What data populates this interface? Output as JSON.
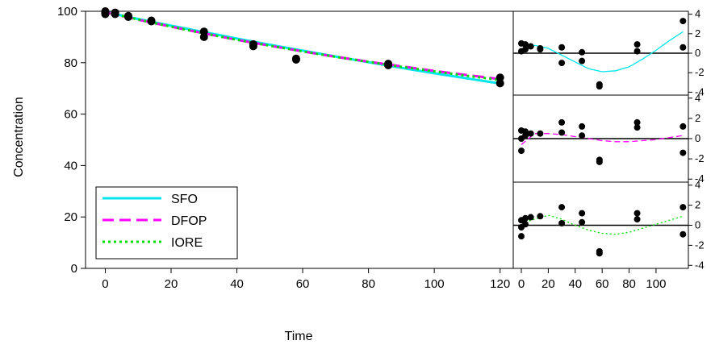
{
  "chart_data": [
    {
      "type": "scatter",
      "xlabel": "Time",
      "ylabel": "Concentration",
      "xlim": [
        -6,
        124
      ],
      "ylim": [
        0,
        100
      ],
      "x_ticks": [
        0,
        20,
        40,
        60,
        80,
        100,
        120
      ],
      "y_ticks": [
        0,
        20,
        40,
        60,
        80,
        100
      ],
      "observations": [
        {
          "x": 0,
          "y": 99.3
        },
        {
          "x": 0,
          "y": 100.0
        },
        {
          "x": 0,
          "y": 98.9
        },
        {
          "x": 0,
          "y": 99.6
        },
        {
          "x": 3,
          "y": 99.5
        },
        {
          "x": 3,
          "y": 98.9
        },
        {
          "x": 7,
          "y": 98.2
        },
        {
          "x": 7,
          "y": 97.8
        },
        {
          "x": 14,
          "y": 96.1
        },
        {
          "x": 14,
          "y": 96.4
        },
        {
          "x": 30,
          "y": 92.1
        },
        {
          "x": 30,
          "y": 90.0
        },
        {
          "x": 45,
          "y": 87.2
        },
        {
          "x": 45,
          "y": 86.4
        },
        {
          "x": 58,
          "y": 81.2
        },
        {
          "x": 58,
          "y": 81.6
        },
        {
          "x": 86,
          "y": 79.0
        },
        {
          "x": 86,
          "y": 79.6
        },
        {
          "x": 120,
          "y": 74.2
        },
        {
          "x": 120,
          "y": 72.0
        }
      ],
      "series": [
        {
          "name": "SFO",
          "color": "#00e5ee",
          "style": "solid",
          "x": [
            0,
            10,
            20,
            30,
            40,
            50,
            60,
            70,
            80,
            90,
            100,
            110,
            120
          ],
          "values": [
            99.7,
            97.0,
            94.4,
            91.9,
            89.4,
            87.0,
            84.7,
            82.4,
            80.2,
            78.0,
            75.9,
            73.9,
            71.9
          ]
        },
        {
          "name": "DFOP",
          "color": "#ff00ff",
          "style": "dashed",
          "x": [
            0,
            10,
            20,
            30,
            40,
            50,
            60,
            70,
            80,
            90,
            100,
            110,
            120
          ],
          "values": [
            99.6,
            96.7,
            94.0,
            91.4,
            88.9,
            86.6,
            84.4,
            82.3,
            80.4,
            78.6,
            76.8,
            75.2,
            73.6
          ]
        },
        {
          "name": "IORE",
          "color": "#00dd00",
          "style": "dotted",
          "x": [
            0,
            10,
            20,
            30,
            40,
            50,
            60,
            70,
            80,
            90,
            100,
            110,
            120
          ],
          "values": [
            99.7,
            96.8,
            94.0,
            91.4,
            88.9,
            86.6,
            84.4,
            82.3,
            80.3,
            78.4,
            76.6,
            74.9,
            73.3
          ]
        }
      ],
      "legend_position": "bottom-left",
      "grid": false
    },
    {
      "type": "scatter",
      "panel": "residuals",
      "xlim": [
        -6,
        124
      ],
      "x_ticks": [
        0,
        20,
        40,
        60,
        80,
        100
      ],
      "x_tick_labels": [
        "0",
        "20",
        "40",
        "60",
        "80",
        "100"
      ],
      "y_ticks": [
        -4,
        -2,
        0,
        2,
        4
      ],
      "panels": [
        {
          "name": "SFO",
          "color": "#00e5ee",
          "ylim": [
            -4.3,
            4.3
          ],
          "residuals": [
            {
              "x": 0,
              "y": 0.2
            },
            {
              "x": 0,
              "y": 1.0
            },
            {
              "x": 3,
              "y": 0.9
            },
            {
              "x": 3,
              "y": 0.4
            },
            {
              "x": 7,
              "y": 0.7
            },
            {
              "x": 14,
              "y": 0.5
            },
            {
              "x": 14,
              "y": 0.4
            },
            {
              "x": 30,
              "y": 0.6
            },
            {
              "x": 30,
              "y": -1.0
            },
            {
              "x": 45,
              "y": 0.1
            },
            {
              "x": 45,
              "y": -0.8
            },
            {
              "x": 58,
              "y": -3.2
            },
            {
              "x": 58,
              "y": -3.4
            },
            {
              "x": 86,
              "y": 0.9
            },
            {
              "x": 86,
              "y": 0.2
            },
            {
              "x": 120,
              "y": 3.3
            },
            {
              "x": 120,
              "y": 0.6
            }
          ],
          "fit_x": [
            0,
            10,
            20,
            30,
            40,
            50,
            60,
            70,
            80,
            90,
            100,
            110,
            120
          ],
          "fit_y": [
            0.1,
            0.8,
            0.5,
            -0.2,
            -0.9,
            -1.6,
            -1.9,
            -1.8,
            -1.4,
            -0.6,
            0.3,
            1.3,
            2.2
          ]
        },
        {
          "name": "DFOP",
          "color": "#ff00ff",
          "ylim": [
            -4.3,
            4.3
          ],
          "residuals": [
            {
              "x": 0,
              "y": -1.2
            },
            {
              "x": 0,
              "y": 0.0
            },
            {
              "x": 0,
              "y": 0.8
            },
            {
              "x": 3,
              "y": 0.7
            },
            {
              "x": 3,
              "y": 0.3
            },
            {
              "x": 7,
              "y": 0.5
            },
            {
              "x": 14,
              "y": 0.5
            },
            {
              "x": 30,
              "y": 1.6
            },
            {
              "x": 30,
              "y": 0.6
            },
            {
              "x": 45,
              "y": 1.2
            },
            {
              "x": 45,
              "y": 0.3
            },
            {
              "x": 58,
              "y": -2.1
            },
            {
              "x": 58,
              "y": -2.3
            },
            {
              "x": 86,
              "y": 1.6
            },
            {
              "x": 86,
              "y": 1.1
            },
            {
              "x": 120,
              "y": 1.2
            },
            {
              "x": 120,
              "y": -1.4
            }
          ],
          "fit_x": [
            0,
            10,
            20,
            30,
            40,
            50,
            60,
            70,
            80,
            90,
            100,
            110,
            120
          ],
          "fit_y": [
            -0.6,
            0.5,
            0.5,
            0.4,
            0.2,
            0.0,
            -0.2,
            -0.3,
            -0.3,
            -0.2,
            -0.1,
            0.1,
            0.3
          ]
        },
        {
          "name": "IORE",
          "color": "#00dd00",
          "ylim": [
            -4.3,
            4.3
          ],
          "residuals": [
            {
              "x": 0,
              "y": -1.1
            },
            {
              "x": 0,
              "y": -0.2
            },
            {
              "x": 0,
              "y": 0.5
            },
            {
              "x": 3,
              "y": 0.7
            },
            {
              "x": 3,
              "y": 0.1
            },
            {
              "x": 7,
              "y": 0.8
            },
            {
              "x": 14,
              "y": 0.9
            },
            {
              "x": 30,
              "y": 1.8
            },
            {
              "x": 30,
              "y": 0.2
            },
            {
              "x": 45,
              "y": 1.2
            },
            {
              "x": 45,
              "y": 0.3
            },
            {
              "x": 58,
              "y": -2.6
            },
            {
              "x": 58,
              "y": -2.8
            },
            {
              "x": 86,
              "y": 1.2
            },
            {
              "x": 86,
              "y": 0.6
            },
            {
              "x": 120,
              "y": 1.8
            },
            {
              "x": 120,
              "y": -0.9
            }
          ],
          "fit_x": [
            0,
            10,
            20,
            30,
            40,
            50,
            60,
            70,
            80,
            90,
            100,
            110,
            120
          ],
          "fit_y": [
            0.2,
            0.6,
            1.0,
            0.6,
            0.0,
            -0.5,
            -0.8,
            -0.9,
            -0.7,
            -0.3,
            0.1,
            0.5,
            0.9
          ]
        }
      ]
    }
  ]
}
